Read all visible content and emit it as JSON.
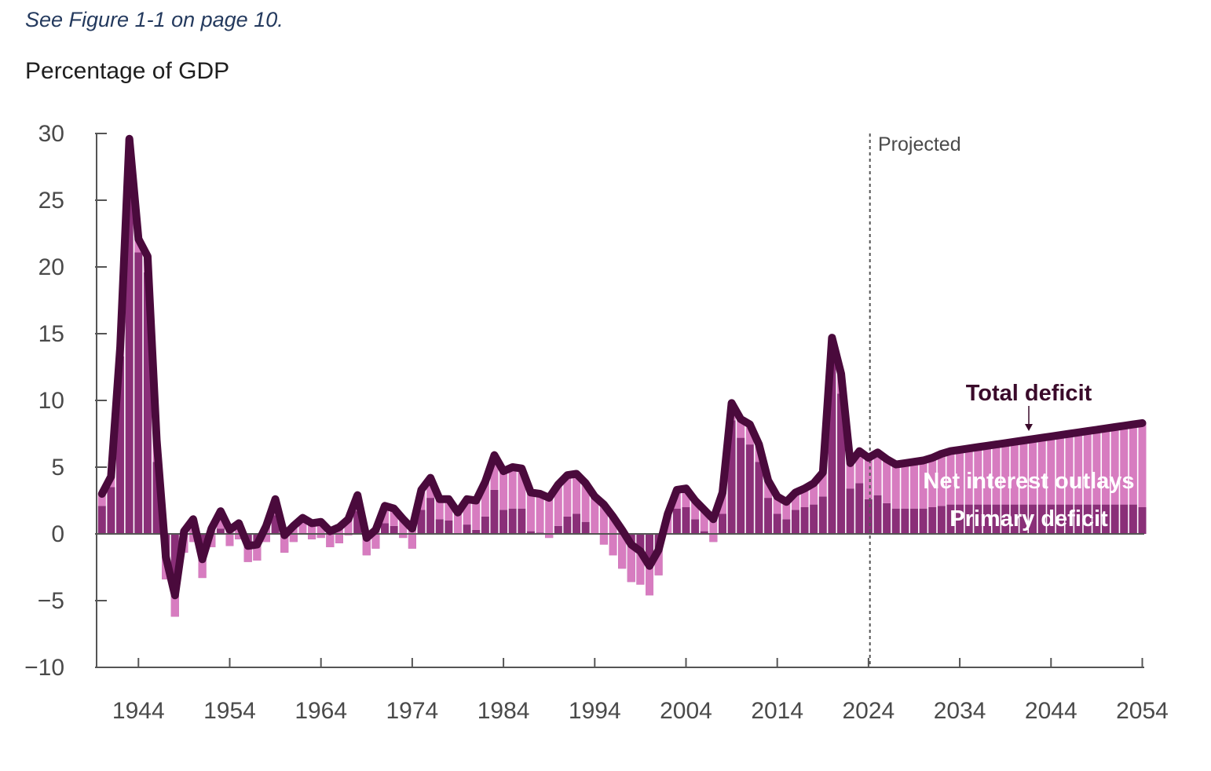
{
  "note": "See Figure 1-1 on page 10.",
  "colors": {
    "primary": "#8a2f78",
    "interest": "#d77cc0",
    "total": "#4a0a3c",
    "axis": "#555555"
  },
  "chart_data": {
    "type": "bar",
    "ylabel": "Percentage of GDP",
    "ylim": [
      -10,
      30
    ],
    "yticks": [
      "30",
      "25",
      "20",
      "15",
      "10",
      "5",
      "0",
      "−5",
      "−10"
    ],
    "yticks_values": [
      30,
      25,
      20,
      15,
      10,
      5,
      0,
      -5,
      -10
    ],
    "xlim": [
      1940,
      2054
    ],
    "xticks": [
      "1944",
      "1954",
      "1964",
      "1974",
      "1984",
      "1994",
      "2004",
      "2014",
      "2024",
      "2034",
      "2044",
      "2054"
    ],
    "xticks_values": [
      1944,
      1954,
      1964,
      1974,
      1984,
      1994,
      2004,
      2014,
      2024,
      2034,
      2044,
      2054
    ],
    "projected_label": "Projected",
    "projected_start": 2024,
    "series_labels": {
      "total": "Total deficit",
      "interest": "Net interest outlays",
      "primary": "Primary deficit"
    },
    "years": [
      1940,
      1941,
      1942,
      1943,
      1944,
      1945,
      1946,
      1947,
      1948,
      1949,
      1950,
      1951,
      1952,
      1953,
      1954,
      1955,
      1956,
      1957,
      1958,
      1959,
      1960,
      1961,
      1962,
      1963,
      1964,
      1965,
      1966,
      1967,
      1968,
      1969,
      1970,
      1971,
      1972,
      1973,
      1974,
      1975,
      1976,
      1977,
      1978,
      1979,
      1980,
      1981,
      1982,
      1983,
      1984,
      1985,
      1986,
      1987,
      1988,
      1989,
      1990,
      1991,
      1992,
      1993,
      1994,
      1995,
      1996,
      1997,
      1998,
      1999,
      2000,
      2001,
      2002,
      2003,
      2004,
      2005,
      2006,
      2007,
      2008,
      2009,
      2010,
      2011,
      2012,
      2013,
      2014,
      2015,
      2016,
      2017,
      2018,
      2019,
      2020,
      2021,
      2022,
      2023,
      2024,
      2025,
      2026,
      2027,
      2028,
      2029,
      2030,
      2031,
      2032,
      2033,
      2034,
      2035,
      2036,
      2037,
      2038,
      2039,
      2040,
      2041,
      2042,
      2043,
      2044,
      2045,
      2046,
      2047,
      2048,
      2049,
      2050,
      2051,
      2052,
      2053,
      2054
    ],
    "total_deficit": [
      3.0,
      4.3,
      14.0,
      29.6,
      22.1,
      20.8,
      7.0,
      -1.7,
      -4.6,
      0.2,
      1.1,
      -1.9,
      0.4,
      1.7,
      0.3,
      0.8,
      -0.9,
      -0.8,
      0.6,
      2.6,
      -0.1,
      0.6,
      1.2,
      0.8,
      0.9,
      0.2,
      0.5,
      1.1,
      2.9,
      -0.3,
      0.3,
      2.1,
      1.9,
      1.1,
      0.4,
      3.3,
      4.2,
      2.6,
      2.6,
      1.6,
      2.6,
      2.5,
      3.9,
      5.9,
      4.7,
      5.0,
      4.9,
      3.1,
      3.0,
      2.7,
      3.7,
      4.4,
      4.5,
      3.8,
      2.8,
      2.2,
      1.3,
      0.3,
      -0.8,
      -1.3,
      -2.4,
      -1.2,
      1.5,
      3.3,
      3.4,
      2.5,
      1.8,
      1.1,
      3.1,
      9.8,
      8.6,
      8.2,
      6.7,
      4.0,
      2.8,
      2.4,
      3.1,
      3.4,
      3.8,
      4.6,
      14.7,
      12.0,
      5.3,
      6.2,
      5.7,
      6.1,
      5.6,
      5.2,
      5.3,
      5.4,
      5.5,
      5.7,
      6.0,
      6.2,
      6.3,
      6.4,
      6.5,
      6.6,
      6.7,
      6.8,
      6.9,
      7.0,
      7.1,
      7.2,
      7.3,
      7.4,
      7.5,
      7.6,
      7.7,
      7.8,
      7.9,
      8.0,
      8.1,
      8.2,
      8.3
    ],
    "net_interest": [
      0.9,
      0.8,
      0.7,
      0.9,
      1.0,
      1.2,
      1.6,
      1.7,
      1.6,
      1.6,
      1.7,
      1.4,
      1.4,
      1.3,
      1.2,
      1.2,
      1.2,
      1.2,
      1.2,
      1.2,
      1.3,
      1.2,
      1.2,
      1.2,
      1.2,
      1.2,
      1.2,
      1.2,
      1.2,
      1.3,
      1.4,
      1.3,
      1.3,
      1.4,
      1.5,
      1.5,
      1.5,
      1.5,
      1.6,
      1.6,
      1.9,
      2.2,
      2.6,
      2.6,
      2.9,
      3.1,
      3.0,
      2.9,
      2.9,
      3.0,
      3.1,
      3.1,
      3.0,
      2.9,
      2.8,
      3.0,
      2.9,
      2.9,
      2.8,
      2.5,
      2.2,
      1.9,
      1.5,
      1.4,
      1.4,
      1.4,
      1.6,
      1.7,
      1.6,
      1.3,
      1.4,
      1.5,
      1.3,
      1.3,
      1.3,
      1.3,
      1.3,
      1.4,
      1.6,
      1.8,
      1.6,
      1.5,
      1.9,
      2.4,
      3.1,
      3.2,
      3.3,
      3.3,
      3.4,
      3.5,
      3.6,
      3.7,
      3.9,
      4.0,
      4.1,
      4.2,
      4.3,
      4.4,
      4.5,
      4.6,
      4.7,
      4.8,
      4.9,
      5.0,
      5.1,
      5.2,
      5.3,
      5.4,
      5.5,
      5.6,
      5.7,
      5.8,
      5.9,
      6.0,
      6.3
    ],
    "primary_deficit": [
      2.1,
      3.5,
      13.3,
      28.7,
      21.1,
      19.6,
      5.4,
      -3.4,
      -6.2,
      -1.4,
      -0.6,
      -3.3,
      -1.0,
      0.4,
      -0.9,
      -0.4,
      -2.1,
      -2.0,
      -0.6,
      1.4,
      -1.4,
      -0.6,
      0.0,
      -0.4,
      -0.3,
      -1.0,
      -0.7,
      -0.1,
      1.7,
      -1.6,
      -1.1,
      0.8,
      0.6,
      -0.3,
      -1.1,
      1.8,
      2.7,
      1.1,
      1.0,
      0.0,
      0.7,
      0.3,
      1.3,
      3.3,
      1.8,
      1.9,
      1.9,
      0.2,
      0.1,
      -0.3,
      0.6,
      1.3,
      1.5,
      0.9,
      0.0,
      -0.8,
      -1.6,
      -2.6,
      -3.6,
      -3.8,
      -4.6,
      -3.1,
      0.0,
      1.9,
      2.0,
      1.1,
      0.2,
      -0.6,
      1.5,
      8.5,
      7.2,
      6.7,
      5.4,
      2.7,
      1.5,
      1.1,
      1.8,
      2.0,
      2.2,
      2.8,
      13.1,
      10.5,
      3.4,
      3.8,
      2.6,
      2.9,
      2.3,
      1.9,
      1.9,
      1.9,
      1.9,
      2.0,
      2.1,
      2.2,
      2.2,
      2.2,
      2.2,
      2.2,
      2.2,
      2.2,
      2.2,
      2.2,
      2.2,
      2.2,
      2.2,
      2.2,
      2.2,
      2.2,
      2.2,
      2.2,
      2.2,
      2.2,
      2.2,
      2.2,
      2.0
    ]
  }
}
